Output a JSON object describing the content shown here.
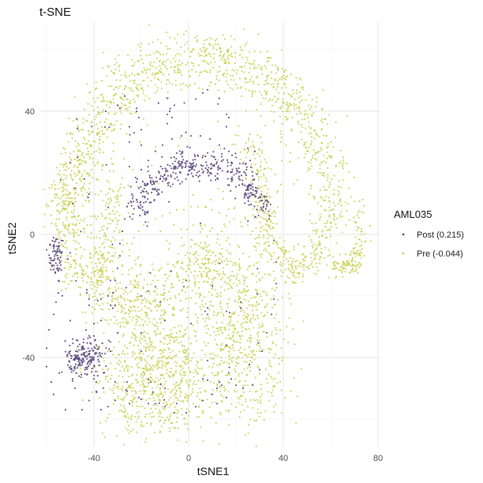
{
  "chart_data": {
    "type": "scatter",
    "title": "t-SNE",
    "xlabel": "tSNE1",
    "ylabel": "tSNE2",
    "xlim": [
      -63,
      81
    ],
    "ylim": [
      -69,
      69
    ],
    "x_ticks": [
      -40,
      0,
      40,
      80
    ],
    "y_ticks": [
      -40,
      0,
      40
    ],
    "x_tick_labels": [
      "-40",
      "0",
      "40",
      "80"
    ],
    "y_tick_labels": [
      "-40",
      "0",
      "40"
    ],
    "grid": true,
    "legend": {
      "title": "AML035",
      "position": "right",
      "entries": [
        {
          "label": "Post (0.215)",
          "color": "#5b4a7e"
        },
        {
          "label": "Pre (-0.044)",
          "color": "#c6d65a"
        }
      ]
    },
    "series": [
      {
        "name": "Post (0.215)",
        "color": "#5b4a7e",
        "regions": [
          {
            "shape": "arc",
            "cx": 5,
            "cy": -5,
            "rx": 30,
            "ry": 28,
            "a0": 155,
            "a1": 25,
            "spread": 2.5,
            "n": 380
          },
          {
            "shape": "blob",
            "cx": -44,
            "cy": -40,
            "sx": 4,
            "sy": 3,
            "n": 180
          },
          {
            "shape": "blob",
            "cx": -56,
            "cy": -7,
            "sx": 1.5,
            "sy": 3.5,
            "n": 70
          },
          {
            "shape": "scatter",
            "x0": -55,
            "x1": 30,
            "y0": -55,
            "y1": 45,
            "n": 60
          }
        ],
        "points": [
          [
            -60,
            -5
          ],
          [
            -50,
            -38
          ],
          [
            -40,
            -47
          ],
          [
            -39,
            -48
          ],
          [
            -26,
            -51
          ],
          [
            -14,
            -17
          ],
          [
            -12,
            -22
          ],
          [
            -10,
            -28
          ],
          [
            -7,
            38
          ],
          [
            -6,
            42
          ],
          [
            -9,
            36
          ],
          [
            8,
            47
          ],
          [
            16,
            35
          ],
          [
            -23,
            33
          ],
          [
            -20,
            29
          ],
          [
            -20,
            34
          ],
          [
            -25,
            30
          ],
          [
            -25,
            35
          ],
          [
            -25,
            22
          ],
          [
            -22,
            40
          ],
          [
            -22,
            41
          ],
          [
            -21,
            38
          ],
          [
            -35,
            40
          ],
          [
            25,
            28
          ],
          [
            26,
            24
          ],
          [
            28,
            27
          ],
          [
            3,
            44
          ],
          [
            18,
            18
          ],
          [
            -2,
            -17
          ],
          [
            -1,
            -15
          ],
          [
            1,
            -29
          ],
          [
            -9,
            39
          ],
          [
            -8,
            40
          ],
          [
            16,
            39
          ],
          [
            17,
            38
          ],
          [
            6,
            46
          ],
          [
            -30,
            42
          ],
          [
            -29,
            41
          ],
          [
            -27,
            45
          ],
          [
            -44,
            18
          ],
          [
            -47,
            25
          ],
          [
            -48,
            15
          ],
          [
            -49,
            10
          ],
          [
            -50,
            -6
          ],
          [
            -51,
            -8
          ],
          [
            -43,
            -18
          ],
          [
            -43,
            -19
          ],
          [
            -55,
            -15
          ],
          [
            -37,
            -21
          ],
          [
            -37,
            -28
          ],
          [
            -21,
            15
          ],
          [
            -18,
            16
          ],
          [
            -16,
            17
          ],
          [
            8,
            -26
          ],
          [
            7,
            -25
          ],
          [
            17,
            -45
          ],
          [
            18,
            -47
          ],
          [
            16,
            -53
          ],
          [
            8,
            -41
          ],
          [
            6,
            -47
          ],
          [
            16,
            -25
          ],
          [
            22,
            -24
          ],
          [
            22,
            -22
          ],
          [
            16,
            -36
          ],
          [
            13,
            -48
          ],
          [
            12,
            -55
          ],
          [
            -5,
            -55
          ],
          [
            -10,
            -50
          ],
          [
            -16,
            -48
          ],
          [
            -20,
            -20
          ],
          [
            -20,
            -32
          ],
          [
            -20,
            -38
          ],
          [
            -26,
            -48
          ],
          [
            -31,
            -48
          ],
          [
            -30,
            -32
          ],
          [
            -33,
            -38
          ],
          [
            -33,
            -35
          ],
          [
            -32,
            -24
          ],
          [
            -31,
            -23
          ],
          [
            -33,
            -15
          ],
          [
            -34,
            -20
          ],
          [
            -42,
            -23
          ],
          [
            -42,
            -21
          ],
          [
            -40,
            -29
          ],
          [
            -40,
            -33
          ],
          [
            -39,
            -36
          ],
          [
            -36,
            -45
          ],
          [
            -36,
            -50
          ],
          [
            -37,
            -57
          ],
          [
            -39,
            -51
          ],
          [
            -42,
            -54
          ],
          [
            -48,
            -50
          ],
          [
            -49,
            -47
          ],
          [
            -48,
            -43
          ],
          [
            -49,
            -34
          ],
          [
            -50,
            -28
          ],
          [
            -56,
            -22
          ],
          [
            -55,
            -19
          ],
          [
            -54,
            -10
          ],
          [
            -57,
            -26
          ],
          [
            -59,
            -31
          ],
          [
            -60,
            -37
          ],
          [
            -60,
            -43
          ],
          [
            -58,
            -48
          ],
          [
            -57,
            -52
          ],
          [
            -52,
            -57
          ],
          [
            -45,
            -57
          ],
          [
            -34,
            -56
          ],
          [
            -31,
            -54
          ],
          [
            -25,
            -55
          ],
          [
            -21,
            -53
          ],
          [
            -17,
            -55
          ],
          [
            -14,
            -55
          ],
          [
            -10,
            -56
          ],
          [
            -6,
            -58
          ],
          [
            -1,
            -58
          ],
          [
            3,
            -56
          ],
          [
            6,
            -54
          ],
          [
            10,
            -52
          ],
          [
            12,
            -50
          ],
          [
            14,
            -49
          ],
          [
            20,
            -49
          ],
          [
            23,
            -50
          ],
          [
            27,
            -49
          ],
          [
            30,
            -44
          ],
          [
            31,
            -38
          ],
          [
            33,
            -32
          ],
          [
            35,
            -26
          ],
          [
            36,
            -21
          ],
          [
            37,
            -16
          ],
          [
            37,
            -9
          ],
          [
            36,
            -2
          ],
          [
            34,
            5
          ],
          [
            31,
            11
          ],
          [
            29,
            15
          ],
          [
            27,
            19
          ],
          [
            23,
            23
          ],
          [
            20,
            25
          ],
          [
            17,
            27
          ],
          [
            13,
            29
          ],
          [
            9,
            31
          ],
          [
            5,
            32
          ],
          [
            1,
            32
          ],
          [
            -3,
            32
          ],
          [
            -7,
            31
          ],
          [
            -11,
            29
          ],
          [
            -14,
            27
          ],
          [
            -17,
            24
          ],
          [
            -20,
            21
          ],
          [
            -22,
            17
          ],
          [
            -24,
            13
          ],
          [
            -26,
            9
          ],
          [
            -27,
            5
          ],
          [
            -28,
            1
          ],
          [
            -29,
            -3
          ],
          [
            -29,
            -7
          ],
          [
            -30,
            -11
          ],
          [
            -31,
            -15
          ],
          [
            -32,
            -19
          ],
          [
            -33,
            -23
          ]
        ]
      },
      {
        "name": "Pre (-0.044)",
        "color": "#c6d65a",
        "regions": [
          {
            "shape": "arc",
            "cx": 5,
            "cy": 5,
            "rx": 55,
            "ry": 52,
            "a0": 180,
            "a1": 0,
            "spread": 5,
            "n": 1100
          },
          {
            "shape": "band",
            "points": [
              [
                60,
                5
              ],
              [
                55,
                -5
              ],
              [
                48,
                -12
              ],
              [
                38,
                -8
              ],
              [
                32,
                5
              ],
              [
                30,
                20
              ],
              [
                25,
                30
              ]
            ],
            "spread": 3,
            "n": 350
          },
          {
            "shape": "band",
            "points": [
              [
                72,
                11
              ],
              [
                73,
                0
              ],
              [
                71,
                -8
              ],
              [
                66,
                -11
              ],
              [
                60,
                -10
              ]
            ],
            "spread": 1.5,
            "n": 140
          },
          {
            "shape": "band",
            "points": [
              [
                -52,
                15
              ],
              [
                -51,
                5
              ],
              [
                -50,
                -5
              ],
              [
                -48,
                -12
              ],
              [
                -42,
                -14
              ],
              [
                -35,
                -13
              ]
            ],
            "spread": 4,
            "n": 220
          },
          {
            "shape": "band",
            "points": [
              [
                -30,
                22
              ],
              [
                -32,
                10
              ],
              [
                -34,
                0
              ],
              [
                -36,
                -10
              ],
              [
                -38,
                -17
              ]
            ],
            "spread": 3,
            "n": 160
          },
          {
            "shape": "blob",
            "cx": -15,
            "cy": -48,
            "sx": 11,
            "sy": 9,
            "n": 520
          },
          {
            "shape": "blob",
            "cx": -12,
            "cy": -28,
            "sx": 12,
            "sy": 10,
            "n": 300
          },
          {
            "shape": "blob",
            "cx": 22,
            "cy": -30,
            "sx": 10,
            "sy": 15,
            "n": 600
          },
          {
            "shape": "blob",
            "cx": 6,
            "cy": -10,
            "sx": 6,
            "sy": 5,
            "n": 140
          },
          {
            "shape": "blob",
            "cx": -25,
            "cy": -22,
            "sx": 7,
            "sy": 4,
            "n": 110
          },
          {
            "shape": "scatter",
            "x0": -45,
            "x1": 40,
            "y0": -62,
            "y1": 62,
            "n": 120
          }
        ],
        "points": [
          [
            -2,
            65
          ],
          [
            -1,
            66
          ],
          [
            -40,
            6
          ],
          [
            -41,
            21
          ],
          [
            -42,
            19
          ],
          [
            -37,
            14
          ],
          [
            -39,
            18
          ],
          [
            -46,
            20
          ],
          [
            -45,
            15
          ],
          [
            -44,
            5
          ],
          [
            -45,
            -7
          ],
          [
            -28,
            -13
          ],
          [
            -28,
            -10
          ],
          [
            -24,
            -11
          ],
          [
            -25,
            -7
          ],
          [
            -26,
            -3
          ],
          [
            -8,
            -3
          ],
          [
            1,
            -4
          ],
          [
            2,
            3
          ],
          [
            5,
            3
          ],
          [
            7,
            3
          ],
          [
            10,
            2
          ],
          [
            14,
            1
          ],
          [
            16,
            -2
          ],
          [
            17,
            -6
          ],
          [
            16,
            -8
          ],
          [
            13,
            -8
          ],
          [
            8,
            -8
          ],
          [
            -5,
            -9
          ],
          [
            -8,
            -12
          ],
          [
            -10,
            -13
          ],
          [
            -13,
            -15
          ],
          [
            -15,
            -15
          ],
          [
            -30,
            -25
          ],
          [
            -30,
            -29
          ],
          [
            -34,
            -38
          ],
          [
            -33,
            -47
          ],
          [
            -28,
            -43
          ],
          [
            -27,
            -39
          ],
          [
            -23,
            -36
          ],
          [
            -20,
            -40
          ],
          [
            -19,
            -45
          ],
          [
            -24,
            -59
          ],
          [
            -20,
            -61
          ],
          [
            -16,
            -62
          ],
          [
            -12,
            -64
          ],
          [
            -8,
            -63
          ],
          [
            -5,
            -61
          ],
          [
            -2,
            -60
          ],
          [
            0,
            -59
          ],
          [
            6,
            -58
          ],
          [
            2,
            -55
          ],
          [
            25,
            -56
          ],
          [
            28,
            -54
          ],
          [
            31,
            -52
          ],
          [
            33,
            -47
          ],
          [
            35,
            -43
          ],
          [
            36,
            -40
          ],
          [
            37,
            -36
          ],
          [
            37,
            -31
          ],
          [
            37,
            -26
          ],
          [
            36,
            -20
          ],
          [
            36,
            -15
          ],
          [
            36,
            -12
          ],
          [
            35,
            -8
          ],
          [
            34,
            -6
          ],
          [
            32,
            -3
          ],
          [
            30,
            -1
          ],
          [
            27,
            1
          ],
          [
            25,
            3
          ],
          [
            22,
            4
          ],
          [
            19,
            5
          ],
          [
            16,
            6
          ],
          [
            13,
            7
          ],
          [
            10,
            8
          ],
          [
            7,
            9
          ],
          [
            4,
            9
          ],
          [
            1,
            9
          ],
          [
            -2,
            8
          ],
          [
            -5,
            8
          ],
          [
            -8,
            7
          ],
          [
            -11,
            6
          ],
          [
            -14,
            5
          ],
          [
            -17,
            4
          ],
          [
            -19,
            3
          ],
          [
            -21,
            1
          ],
          [
            -23,
            -1
          ],
          [
            -24,
            -3
          ],
          [
            -25,
            -5
          ]
        ]
      }
    ]
  }
}
